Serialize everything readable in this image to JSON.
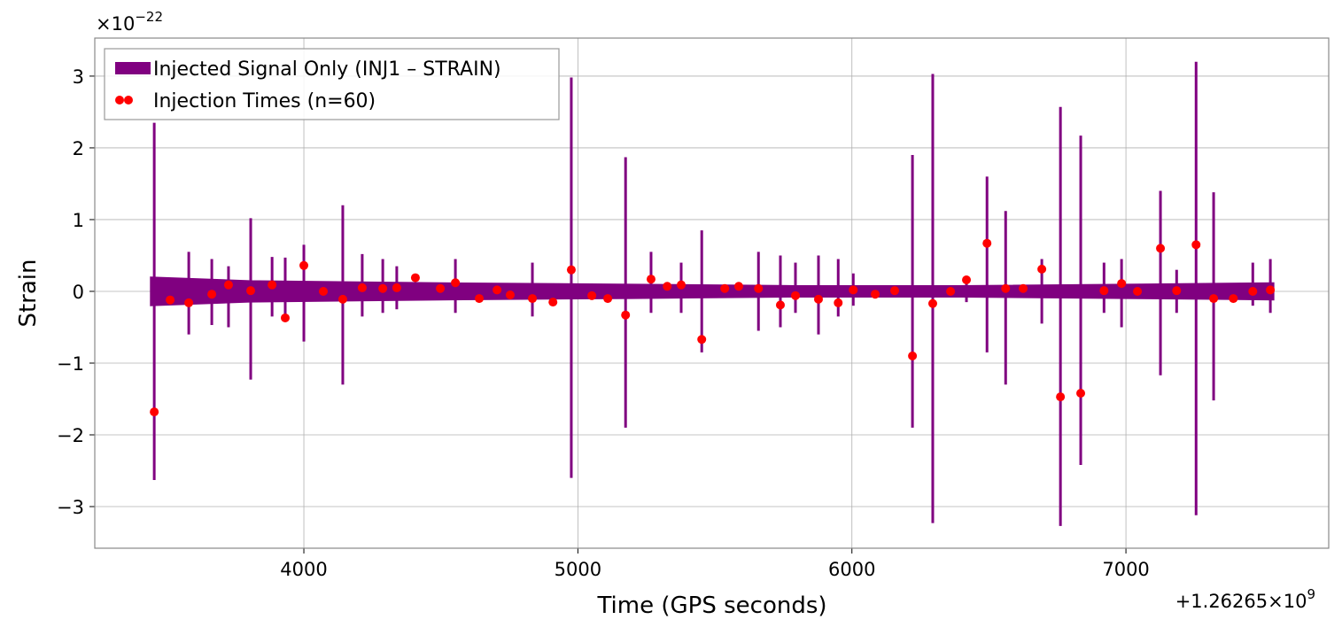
{
  "chart_data": {
    "type": "line",
    "xlabel": "Time (GPS seconds)",
    "ylabel": "Strain",
    "y_multiplier": {
      "base": "×10",
      "exponent": "−22"
    },
    "x_offset": {
      "base": "+1.26265×10",
      "exponent": "9"
    },
    "xlim": [
      3237,
      7740
    ],
    "ylim": [
      -3.58,
      3.53
    ],
    "xticks": [
      4000,
      5000,
      6000,
      7000
    ],
    "yticks": [
      {
        "value": -3,
        "label": "−3"
      },
      {
        "value": -2,
        "label": "−2"
      },
      {
        "value": -1,
        "label": "−1"
      },
      0,
      1,
      2,
      3
    ],
    "grid": true,
    "legend": "upper left",
    "series": [
      {
        "name": "Injected Signal Only (INJ1 – STRAIN)",
        "color": "#800080",
        "kind": "spikes",
        "x": [
          3454,
          3580,
          3664,
          3725,
          3806,
          3884,
          3932,
          4000,
          4142,
          4213,
          4288,
          4339,
          4553,
          4834,
          4976,
          5174,
          5267,
          5377,
          5452,
          5659,
          5739,
          5794,
          5878,
          5950,
          6005,
          6221,
          6295,
          6418,
          6493,
          6561,
          6693,
          6761,
          6835,
          6920,
          6984,
          7126,
          7185,
          7256,
          7320,
          7463,
          7527
        ],
        "high": [
          2.35,
          0.55,
          0.45,
          0.35,
          1.02,
          0.48,
          0.47,
          0.65,
          1.2,
          0.52,
          0.45,
          0.35,
          0.45,
          0.4,
          2.98,
          1.87,
          0.55,
          0.4,
          0.85,
          0.55,
          0.5,
          0.4,
          0.5,
          0.45,
          0.25,
          1.9,
          3.03,
          0.2,
          1.6,
          1.12,
          0.45,
          2.57,
          2.17,
          0.4,
          0.45,
          1.4,
          0.3,
          3.2,
          1.38,
          0.4,
          0.45
        ],
        "low": [
          -2.63,
          -0.6,
          -0.47,
          -0.5,
          -1.23,
          -0.35,
          -0.4,
          -0.7,
          -1.3,
          -0.35,
          -0.3,
          -0.25,
          -0.3,
          -0.35,
          -2.6,
          -1.9,
          -0.3,
          -0.3,
          -0.85,
          -0.55,
          -0.5,
          -0.3,
          -0.6,
          -0.35,
          -0.2,
          -1.9,
          -3.23,
          -0.15,
          -0.85,
          -1.3,
          -0.45,
          -3.27,
          -2.42,
          -0.3,
          -0.5,
          -1.17,
          -0.3,
          -3.12,
          -1.52,
          -0.2,
          -0.3
        ],
        "band_x": [
          3440,
          3800,
          4500,
          5200,
          5800,
          6400,
          7000,
          7540
        ],
        "band_upper": [
          0.2,
          0.15,
          0.12,
          0.1,
          0.08,
          0.08,
          0.1,
          0.12
        ],
        "band_lower": [
          -0.2,
          -0.15,
          -0.12,
          -0.1,
          -0.08,
          -0.08,
          -0.1,
          -0.12
        ]
      },
      {
        "name": "Injection Times (n=60)",
        "color": "#ff0000",
        "kind": "scatter",
        "x": [
          3454,
          3512,
          3580,
          3664,
          3725,
          3806,
          3884,
          3932,
          4000,
          4071,
          4142,
          4213,
          4288,
          4339,
          4407,
          4498,
          4553,
          4640,
          4705,
          4753,
          4834,
          4909,
          4976,
          5051,
          5109,
          5174,
          5267,
          5326,
          5377,
          5452,
          5536,
          5587,
          5659,
          5739,
          5794,
          5878,
          5950,
          6005,
          6085,
          6156,
          6221,
          6295,
          6360,
          6418,
          6493,
          6561,
          6625,
          6693,
          6761,
          6835,
          6920,
          6984,
          7042,
          7126,
          7185,
          7256,
          7320,
          7392,
          7463,
          7527
        ],
        "values": [
          -1.68,
          -0.12,
          -0.16,
          -0.04,
          0.09,
          0.01,
          0.09,
          -0.37,
          0.36,
          0.0,
          -0.11,
          0.05,
          0.04,
          0.05,
          0.19,
          0.04,
          0.12,
          -0.1,
          0.02,
          -0.05,
          -0.1,
          -0.15,
          0.3,
          -0.06,
          -0.1,
          -0.33,
          0.17,
          0.07,
          0.09,
          -0.67,
          0.04,
          0.07,
          0.04,
          -0.19,
          -0.06,
          -0.11,
          -0.16,
          0.02,
          -0.04,
          0.01,
          -0.9,
          -0.17,
          0.0,
          0.16,
          0.67,
          0.04,
          0.04,
          0.31,
          -1.47,
          -1.42,
          0.01,
          0.11,
          0.0,
          0.6,
          0.01,
          0.65,
          -0.1,
          -0.1,
          0.0,
          0.02
        ]
      }
    ]
  }
}
